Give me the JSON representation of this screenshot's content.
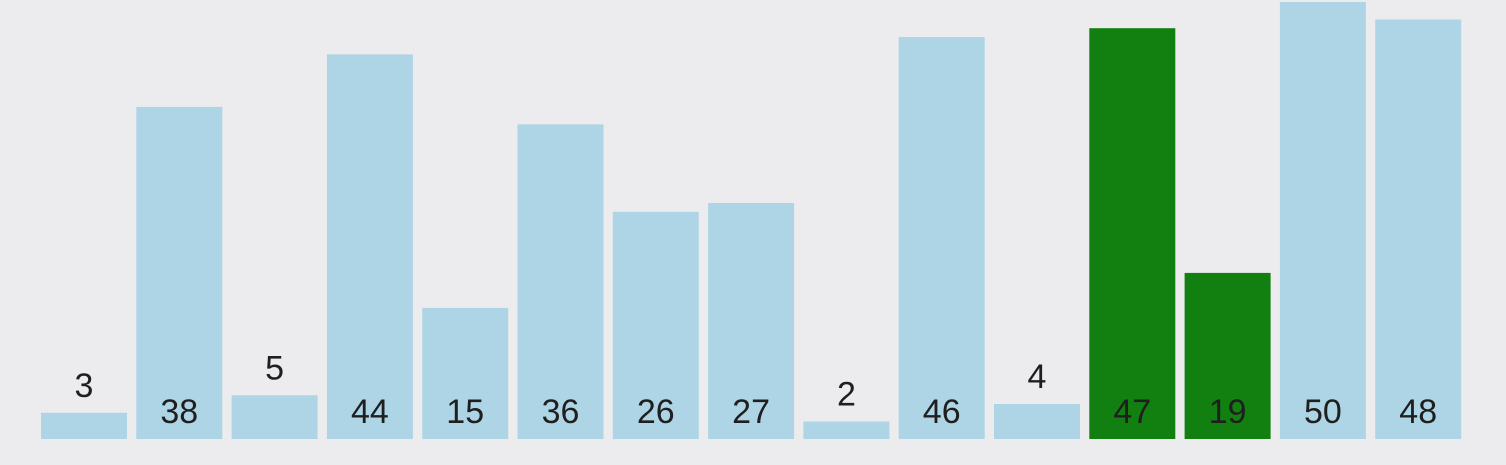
{
  "chart_data": {
    "type": "bar",
    "values": [
      3,
      38,
      5,
      44,
      15,
      36,
      26,
      27,
      2,
      46,
      4,
      47,
      19,
      50,
      48
    ],
    "labels": [
      "3",
      "38",
      "5",
      "44",
      "15",
      "36",
      "26",
      "27",
      "2",
      "46",
      "4",
      "47",
      "19",
      "50",
      "48"
    ],
    "highlighted_indices": [
      11,
      12
    ],
    "ylim": [
      0,
      50
    ],
    "grid": false,
    "legend": "none",
    "title": "",
    "xlabel": "",
    "ylabel": ""
  },
  "colors": {
    "background": "#ececee",
    "bar_default": "#add5e5",
    "bar_highlight": "#118011",
    "label": "#1f1f1f"
  }
}
